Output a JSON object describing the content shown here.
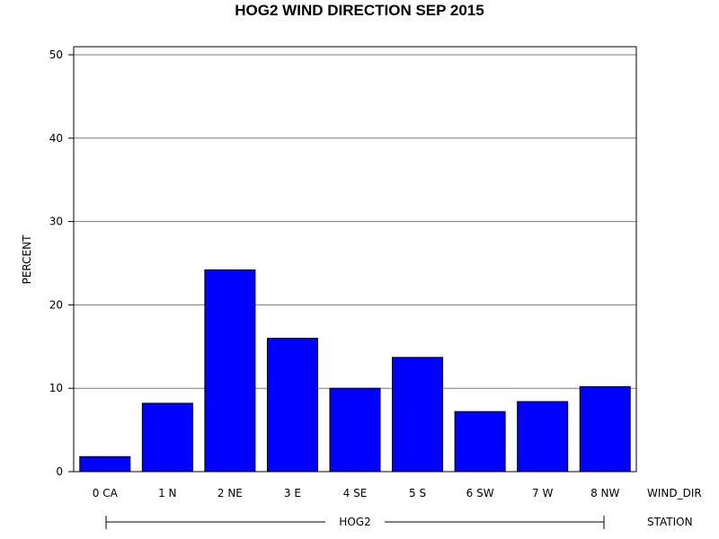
{
  "chart_data": {
    "type": "bar",
    "title": "HOG2 WIND DIRECTION SEP 2015",
    "ylabel": "PERCENT",
    "xlabel": "WIND_DIR",
    "group_label": "STATION",
    "group_value": "HOG2",
    "categories": [
      "0 CA",
      "1 N",
      "2 NE",
      "3 E",
      "4 SE",
      "5 S",
      "6 SW",
      "7 W",
      "8 NW"
    ],
    "values": [
      1.8,
      8.2,
      24.2,
      16.0,
      10.0,
      13.7,
      7.2,
      8.4,
      10.2
    ],
    "ylim": [
      0,
      50
    ],
    "yticks": [
      0,
      10,
      20,
      30,
      40,
      50
    ],
    "grid": true,
    "bar_color": "#0000ff"
  }
}
